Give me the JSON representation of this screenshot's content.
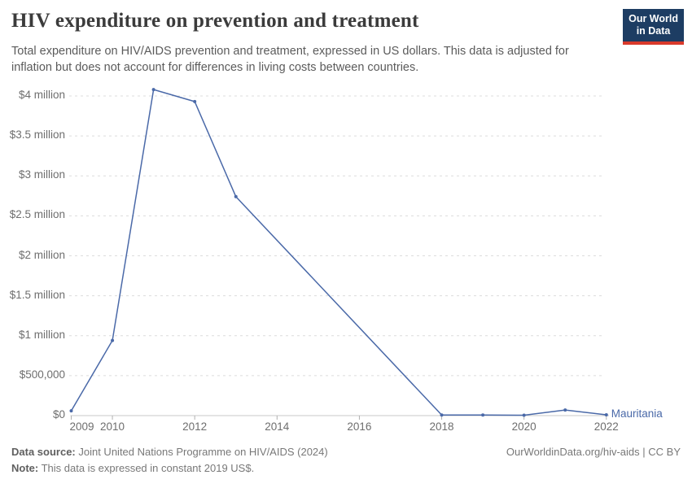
{
  "header": {
    "title": "HIV expenditure on prevention and treatment",
    "subtitle": "Total expenditure on HIV/AIDS prevention and treatment, expressed in US dollars. This data is adjusted for inflation but does not account for differences in living costs between countries.",
    "logo": {
      "line1": "Our World",
      "line2": "in Data"
    }
  },
  "chart_data": {
    "type": "line",
    "title": "HIV expenditure on prevention and treatment",
    "xlabel": "",
    "ylabel": "",
    "xlim": [
      2009,
      2022
    ],
    "ylim": [
      0,
      4000000
    ],
    "grid": "horizontal-dashed",
    "legend_position": "end-of-line",
    "x_ticks": [
      2009,
      2010,
      2012,
      2014,
      2016,
      2018,
      2020,
      2022
    ],
    "y_ticks": [
      {
        "value": 0,
        "label": "$0"
      },
      {
        "value": 500000,
        "label": "$500,000"
      },
      {
        "value": 1000000,
        "label": "$1 million"
      },
      {
        "value": 1500000,
        "label": "$1.5 million"
      },
      {
        "value": 2000000,
        "label": "$2 million"
      },
      {
        "value": 2500000,
        "label": "$2.5 million"
      },
      {
        "value": 3000000,
        "label": "$3 million"
      },
      {
        "value": 3500000,
        "label": "$3.5 million"
      },
      {
        "value": 4000000,
        "label": "$4 million"
      }
    ],
    "series": [
      {
        "name": "Mauritania",
        "color": "#4a69a8",
        "points": [
          [
            2009,
            60000
          ],
          [
            2010,
            940000
          ],
          [
            2011,
            4080000
          ],
          [
            2012,
            3930000
          ],
          [
            2013,
            2740000
          ],
          [
            2018,
            8000
          ],
          [
            2019,
            8000
          ],
          [
            2020,
            5000
          ],
          [
            2021,
            70000
          ],
          [
            2022,
            10000
          ]
        ]
      }
    ],
    "colors": {
      "grid": "#dcdcdc",
      "axis": "#c8c8c8",
      "tick": "#b0b0b0"
    }
  },
  "footer": {
    "datasource_label": "Data source:",
    "datasource_text": " Joint United Nations Programme on HIV/AIDS (2024)",
    "note_label": "Note:",
    "note_text": " This data is expressed in constant 2019 US$.",
    "credit": "OurWorldinData.org/hiv-aids | CC BY"
  }
}
